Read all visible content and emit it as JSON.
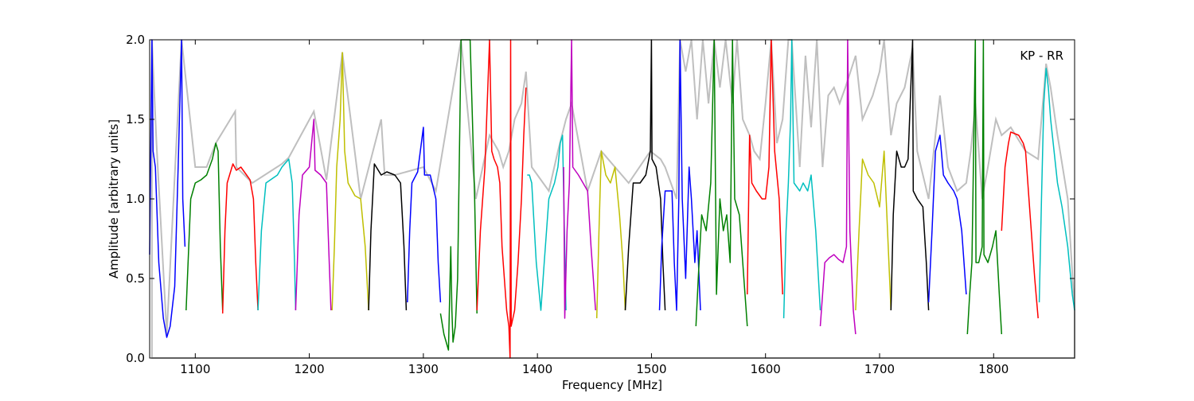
{
  "chart_data": {
    "type": "line",
    "title": "",
    "annotation": "KP - RR",
    "xlabel": "Frequency [MHz]",
    "ylabel": "Amplitude [arbitrary units]",
    "xlim": [
      1060,
      1871
    ],
    "ylim": [
      0.0,
      2.0
    ],
    "xticks": [
      1100,
      1200,
      1300,
      1400,
      1500,
      1600,
      1700,
      1800
    ],
    "xtick_labels": [
      "1100",
      "1200",
      "1300",
      "1400",
      "1500",
      "1600",
      "1700",
      "1800"
    ],
    "yticks": [
      0.0,
      0.5,
      1.0,
      1.5,
      2.0
    ],
    "ytick_labels": [
      "0.0",
      "0.5",
      "1.0",
      "1.5",
      "2.0"
    ],
    "grid": false,
    "background_band": {
      "color": "#bfbfbf",
      "x": [
        1062,
        1066,
        1075,
        1088,
        1100,
        1110,
        1118,
        1135,
        1136,
        1150,
        1176,
        1182,
        1204,
        1215,
        1229,
        1245,
        1263,
        1266,
        1275,
        1300,
        1311,
        1333,
        1346,
        1358,
        1362,
        1366,
        1370,
        1375,
        1380,
        1386,
        1390,
        1395,
        1410,
        1418,
        1425,
        1430,
        1444,
        1456,
        1468,
        1480,
        1499,
        1508,
        1512,
        1522,
        1525,
        1530,
        1535,
        1540,
        1545,
        1550,
        1555,
        1560,
        1565,
        1571,
        1575,
        1580,
        1586,
        1590,
        1595,
        1600,
        1605,
        1610,
        1615,
        1620,
        1623,
        1630,
        1635,
        1640,
        1645,
        1650,
        1655,
        1660,
        1665,
        1670,
        1679,
        1685,
        1694,
        1700,
        1704,
        1710,
        1715,
        1722,
        1729,
        1733,
        1743,
        1749,
        1753,
        1760,
        1768,
        1776,
        1780,
        1784,
        1790,
        1795,
        1802,
        1807,
        1815,
        1828,
        1839,
        1846,
        1850,
        1856,
        1865,
        1871
      ],
      "y": [
        2.0,
        1.35,
        0.15,
        2.0,
        1.2,
        1.2,
        1.35,
        1.55,
        1.2,
        1.1,
        1.22,
        1.26,
        1.55,
        1.12,
        1.92,
        1.0,
        1.5,
        1.15,
        1.15,
        1.2,
        1.05,
        2.0,
        1.0,
        1.4,
        1.35,
        1.3,
        1.2,
        1.3,
        1.5,
        1.6,
        1.8,
        1.2,
        1.05,
        1.3,
        1.5,
        1.6,
        1.05,
        1.3,
        1.2,
        1.1,
        1.3,
        1.25,
        1.2,
        1.0,
        2.0,
        1.8,
        2.0,
        1.5,
        2.0,
        1.6,
        2.0,
        1.7,
        2.0,
        1.6,
        2.0,
        1.5,
        1.4,
        1.3,
        1.25,
        1.6,
        2.0,
        1.35,
        1.5,
        2.0,
        2.0,
        1.2,
        1.9,
        1.45,
        2.0,
        1.2,
        1.65,
        1.7,
        1.6,
        1.7,
        1.9,
        1.5,
        1.65,
        1.8,
        2.0,
        1.4,
        1.6,
        1.7,
        1.95,
        1.3,
        1.0,
        1.4,
        1.65,
        1.2,
        1.05,
        1.1,
        1.3,
        1.6,
        1.0,
        1.2,
        1.5,
        1.4,
        1.45,
        1.3,
        1.25,
        1.85,
        1.7,
        1.4,
        1.0,
        0.3
      ]
    },
    "series": [
      {
        "name": "band-01",
        "color": "#0000ff",
        "x": [
          1060,
          1062,
          1063,
          1065,
          1068,
          1072,
          1075,
          1078,
          1082,
          1085,
          1088,
          1089,
          1091
        ],
        "y": [
          0.65,
          2.0,
          1.3,
          1.2,
          0.6,
          0.25,
          0.13,
          0.2,
          0.45,
          1.2,
          2.0,
          1.0,
          0.7
        ]
      },
      {
        "name": "band-02",
        "color": "#008000",
        "x": [
          1092,
          1096,
          1100,
          1105,
          1110,
          1115,
          1118,
          1120,
          1122,
          1124
        ],
        "y": [
          0.3,
          1.0,
          1.1,
          1.12,
          1.15,
          1.25,
          1.35,
          1.3,
          0.7,
          0.3
        ]
      },
      {
        "name": "band-03",
        "color": "#ff0000",
        "x": [
          1124,
          1126,
          1128,
          1133,
          1136,
          1140,
          1145,
          1148,
          1151,
          1153,
          1155
        ],
        "y": [
          0.28,
          0.8,
          1.1,
          1.22,
          1.18,
          1.2,
          1.15,
          1.12,
          1.0,
          0.6,
          0.3
        ]
      },
      {
        "name": "band-04",
        "color": "#00bfbf",
        "x": [
          1155,
          1158,
          1162,
          1168,
          1172,
          1176,
          1182,
          1185,
          1187,
          1188
        ],
        "y": [
          0.3,
          0.8,
          1.1,
          1.13,
          1.15,
          1.2,
          1.25,
          1.1,
          0.6,
          0.3
        ]
      },
      {
        "name": "band-05",
        "color": "#bf00bf",
        "x": [
          1188,
          1191,
          1194,
          1200,
          1204,
          1205,
          1210,
          1215,
          1217,
          1219
        ],
        "y": [
          0.3,
          0.9,
          1.15,
          1.2,
          1.5,
          1.18,
          1.15,
          1.1,
          0.7,
          0.3
        ]
      },
      {
        "name": "band-06",
        "color": "#bfbf00",
        "x": [
          1220,
          1222,
          1224,
          1227,
          1229,
          1231,
          1234,
          1240,
          1245,
          1249,
          1252
        ],
        "y": [
          0.3,
          0.7,
          1.2,
          1.5,
          1.92,
          1.3,
          1.1,
          1.02,
          1.0,
          0.7,
          0.3
        ]
      },
      {
        "name": "band-07",
        "color": "#000000",
        "x": [
          1252,
          1254,
          1257,
          1263,
          1268,
          1275,
          1280,
          1283,
          1285
        ],
        "y": [
          0.3,
          0.8,
          1.22,
          1.15,
          1.17,
          1.15,
          1.1,
          0.7,
          0.3
        ]
      },
      {
        "name": "band-08",
        "color": "#0000ff",
        "x": [
          1286,
          1288,
          1290,
          1295,
          1300,
          1301,
          1306,
          1311,
          1313,
          1315
        ],
        "y": [
          0.35,
          0.8,
          1.1,
          1.17,
          1.45,
          1.15,
          1.15,
          1.0,
          0.6,
          0.35
        ]
      },
      {
        "name": "band-09",
        "color": "#008000",
        "x": [
          1315,
          1318,
          1322,
          1324,
          1325,
          1326,
          1328,
          1330,
          1333,
          1341,
          1343,
          1345,
          1347
        ],
        "y": [
          0.28,
          0.15,
          0.05,
          0.7,
          0.3,
          0.1,
          0.2,
          0.5,
          2.0,
          2.0,
          1.5,
          1.0,
          0.28
        ]
      },
      {
        "name": "band-10",
        "color": "#ff0000",
        "x": [
          1347,
          1350,
          1354,
          1358,
          1360,
          1362,
          1365,
          1367,
          1369,
          1371,
          1373,
          1375,
          1376,
          1376.5,
          1377,
          1380,
          1383,
          1386,
          1388,
          1390
        ],
        "y": [
          0.3,
          0.8,
          1.2,
          2.0,
          1.3,
          1.25,
          1.2,
          1.1,
          0.7,
          0.5,
          0.3,
          0.2,
          0.0,
          2.0,
          0.2,
          0.3,
          0.6,
          1.0,
          1.4,
          1.7
        ]
      },
      {
        "name": "band-11",
        "color": "#00bfbf",
        "x": [
          1391,
          1393,
          1395,
          1399,
          1403,
          1406,
          1410,
          1415,
          1418,
          1420,
          1422,
          1425
        ],
        "y": [
          1.15,
          1.15,
          1.1,
          0.6,
          0.3,
          0.6,
          1.0,
          1.1,
          1.2,
          1.35,
          1.4,
          0.3
        ]
      },
      {
        "name": "band-12",
        "color": "#bf00bf",
        "x": [
          1423,
          1424,
          1426,
          1428,
          1430,
          1431,
          1436,
          1440,
          1444,
          1447,
          1451
        ],
        "y": [
          1.2,
          0.25,
          0.8,
          1.1,
          2.0,
          1.2,
          1.15,
          1.1,
          1.05,
          0.7,
          0.3
        ]
      },
      {
        "name": "band-13",
        "color": "#bfbf00",
        "x": [
          1452,
          1454,
          1456,
          1460,
          1464,
          1468,
          1472,
          1475,
          1477
        ],
        "y": [
          0.25,
          0.8,
          1.3,
          1.15,
          1.1,
          1.2,
          0.9,
          0.6,
          0.3
        ]
      },
      {
        "name": "band-14",
        "color": "#000000",
        "x": [
          1477,
          1480,
          1484,
          1490,
          1495,
          1499,
          1500,
          1500.5,
          1504,
          1508,
          1510,
          1512
        ],
        "y": [
          0.3,
          0.7,
          1.1,
          1.1,
          1.15,
          1.3,
          2.0,
          1.25,
          1.2,
          1.0,
          0.6,
          0.3
        ]
      },
      {
        "name": "band-15",
        "color": "#0000ff",
        "x": [
          1507,
          1509,
          1512,
          1518,
          1520,
          1522,
          1524,
          1525,
          1527,
          1530,
          1533,
          1535,
          1538,
          1540,
          1543
        ],
        "y": [
          0.3,
          0.7,
          1.05,
          1.05,
          0.6,
          0.3,
          1.0,
          2.0,
          1.0,
          0.5,
          1.2,
          1.0,
          0.6,
          0.8,
          0.3
        ]
      },
      {
        "name": "band-16",
        "color": "#008000",
        "x": [
          1539,
          1541,
          1544,
          1548,
          1552,
          1555,
          1557,
          1560,
          1563,
          1566,
          1569,
          1571,
          1573,
          1577,
          1580,
          1584
        ],
        "y": [
          0.2,
          0.5,
          0.9,
          0.8,
          1.1,
          2.0,
          0.4,
          1.0,
          0.8,
          0.9,
          0.6,
          2.0,
          1.0,
          0.9,
          0.6,
          0.2
        ]
      },
      {
        "name": "band-17",
        "color": "#ff0000",
        "x": [
          1584,
          1586,
          1588,
          1592,
          1597,
          1600,
          1603,
          1605,
          1608,
          1612,
          1615
        ],
        "y": [
          0.4,
          1.4,
          1.1,
          1.05,
          1.0,
          1.0,
          1.2,
          2.0,
          1.3,
          1.0,
          0.4
        ]
      },
      {
        "name": "band-18",
        "color": "#00bfbf",
        "x": [
          1616,
          1618,
          1620,
          1622,
          1623,
          1625,
          1630,
          1633,
          1637,
          1640,
          1644,
          1648
        ],
        "y": [
          0.25,
          0.8,
          1.1,
          1.5,
          2.0,
          1.1,
          1.05,
          1.1,
          1.05,
          1.15,
          0.8,
          0.3
        ]
      },
      {
        "name": "band-19",
        "color": "#bf00bf",
        "x": [
          1648,
          1650,
          1652,
          1656,
          1660,
          1664,
          1668,
          1671,
          1672,
          1674,
          1677,
          1679
        ],
        "y": [
          0.2,
          0.4,
          0.6,
          0.63,
          0.65,
          0.62,
          0.6,
          0.7,
          2.0,
          0.8,
          0.3,
          0.15
        ]
      },
      {
        "name": "band-20",
        "color": "#bfbf00",
        "x": [
          1679,
          1682,
          1685,
          1690,
          1695,
          1700,
          1704,
          1707,
          1710
        ],
        "y": [
          0.3,
          0.8,
          1.25,
          1.15,
          1.1,
          0.95,
          1.3,
          0.8,
          0.3
        ]
      },
      {
        "name": "band-21",
        "color": "#000000",
        "x": [
          1710,
          1712,
          1715,
          1719,
          1722,
          1725,
          1729,
          1729.5,
          1733,
          1738,
          1741,
          1743
        ],
        "y": [
          0.3,
          0.9,
          1.3,
          1.2,
          1.2,
          1.25,
          2.0,
          1.05,
          1.0,
          0.95,
          0.6,
          0.3
        ]
      },
      {
        "name": "band-22",
        "color": "#0000ff",
        "x": [
          1743,
          1746,
          1749,
          1753,
          1756,
          1760,
          1765,
          1768,
          1772,
          1776
        ],
        "y": [
          0.35,
          0.8,
          1.3,
          1.4,
          1.15,
          1.1,
          1.05,
          1.0,
          0.8,
          0.4
        ]
      },
      {
        "name": "band-23",
        "color": "#008000",
        "x": [
          1777,
          1779,
          1781,
          1784,
          1784.5,
          1787,
          1790,
          1791,
          1791.5,
          1795,
          1799,
          1802,
          1805,
          1807
        ],
        "y": [
          0.15,
          0.4,
          0.6,
          2.0,
          0.6,
          0.6,
          0.7,
          2.0,
          0.65,
          0.6,
          0.7,
          0.8,
          0.4,
          0.15
        ]
      },
      {
        "name": "band-24",
        "color": "#ff0000",
        "x": [
          1807,
          1810,
          1813,
          1815,
          1822,
          1826,
          1828,
          1832,
          1836,
          1839
        ],
        "y": [
          0.8,
          1.2,
          1.35,
          1.42,
          1.4,
          1.35,
          1.3,
          0.9,
          0.5,
          0.25
        ]
      },
      {
        "name": "band-25",
        "color": "#00bfbf",
        "x": [
          1840,
          1842,
          1844,
          1846,
          1848,
          1850,
          1853,
          1856,
          1860,
          1865,
          1869,
          1871
        ],
        "y": [
          0.35,
          1.0,
          1.6,
          1.82,
          1.7,
          1.5,
          1.3,
          1.1,
          0.95,
          0.7,
          0.4,
          0.3
        ]
      }
    ]
  }
}
